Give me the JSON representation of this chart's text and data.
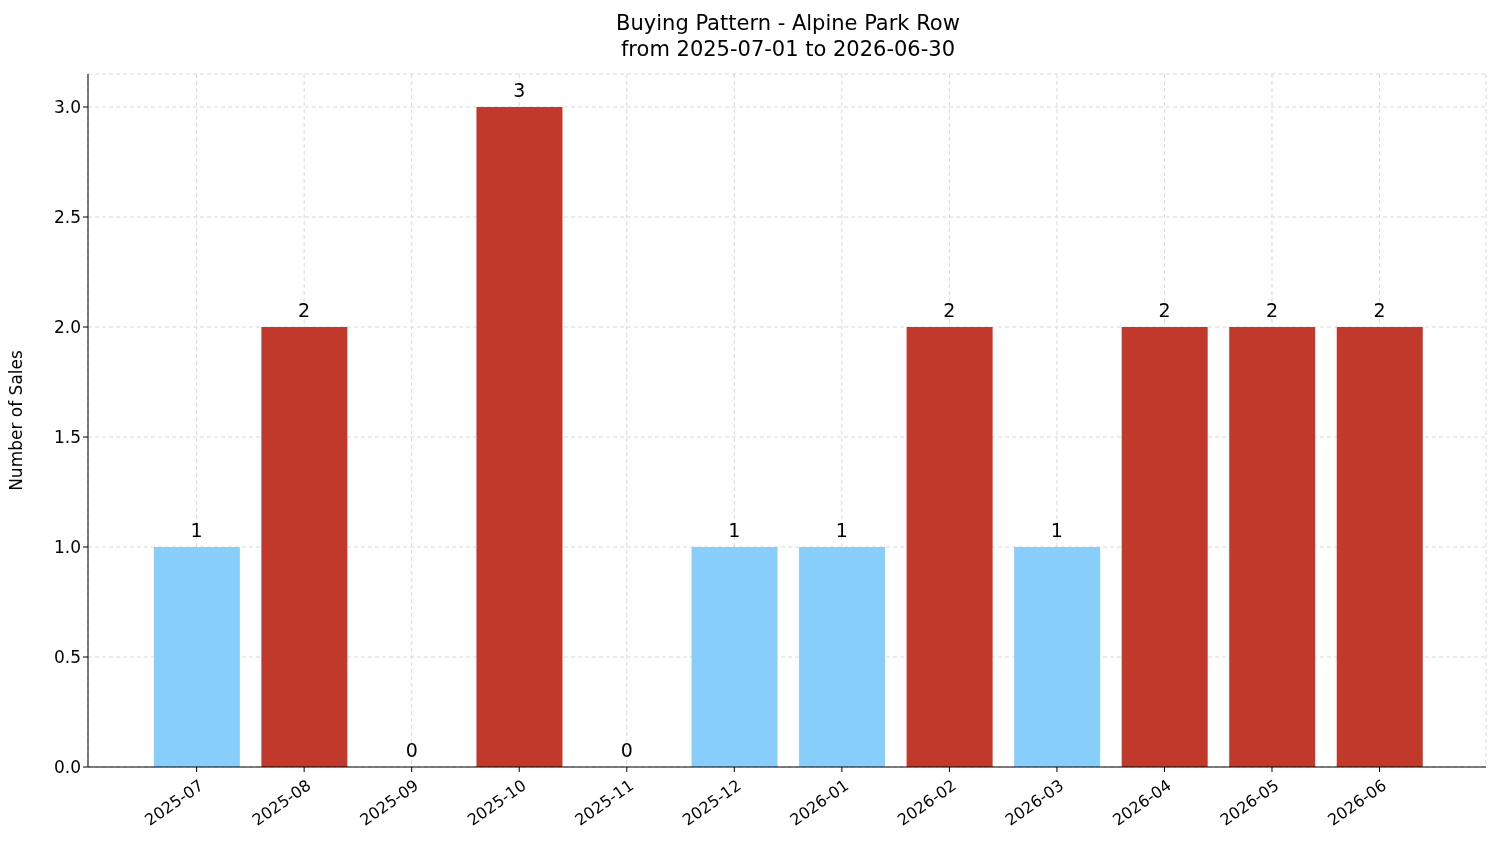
{
  "chart_data": {
    "type": "bar",
    "title": "Buying Pattern - Alpine Park Row",
    "subtitle": "from 2025-07-01 to 2026-06-30",
    "ylabel": "Number of Sales",
    "categories": [
      "2025-07",
      "2025-08",
      "2025-09",
      "2025-10",
      "2025-11",
      "2025-12",
      "2026-01",
      "2026-02",
      "2026-03",
      "2026-04",
      "2026-05",
      "2026-06"
    ],
    "values": [
      1,
      2,
      0,
      3,
      0,
      1,
      1,
      2,
      1,
      2,
      2,
      2
    ],
    "colors": [
      "#87cefa",
      "#c0392b",
      "#c0392b",
      "#c0392b",
      "#c0392b",
      "#87cefa",
      "#87cefa",
      "#c0392b",
      "#87cefa",
      "#c0392b",
      "#c0392b",
      "#c0392b"
    ],
    "ylim": [
      0,
      3.15
    ],
    "yticks": [
      {
        "value": 0,
        "label": "0.0"
      },
      {
        "value": 0.5,
        "label": "0.5"
      },
      {
        "value": 1,
        "label": "1.0"
      },
      {
        "value": 1.5,
        "label": "1.5"
      },
      {
        "value": 2,
        "label": "2.0"
      },
      {
        "value": 2.5,
        "label": "2.5"
      },
      {
        "value": 3,
        "label": "3.0"
      }
    ],
    "grid": true,
    "data_labels": true,
    "legend": false
  }
}
